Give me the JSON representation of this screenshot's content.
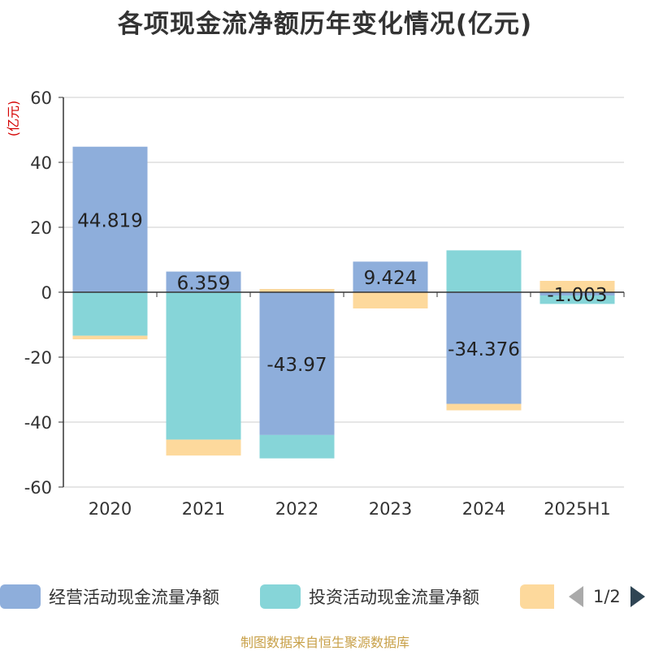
{
  "title": "各项现金流净额历年变化情况(亿元)",
  "source_note": "制图数据来自恒生聚源数据库",
  "pager": {
    "text": "1/2"
  },
  "chart_data": {
    "type": "bar",
    "stacked": true,
    "title": "各项现金流净额历年变化情况(亿元)",
    "ylabel": "(亿元)",
    "xlabel": "",
    "ylim": [
      -60,
      60
    ],
    "yticks": [
      60,
      40,
      20,
      0,
      -20,
      -40,
      -60
    ],
    "ytick_labels": [
      "60",
      "40",
      "20",
      "0",
      "-20",
      "-40",
      "-60"
    ],
    "grid": true,
    "legend_position": "bottom",
    "categories": [
      "2020",
      "2021",
      "2022",
      "2023",
      "2024",
      "2025H1"
    ],
    "series": [
      {
        "name": "经营活动现金流量净额",
        "color": "#8eaedb",
        "values": [
          44.819,
          6.359,
          -43.97,
          9.424,
          -34.376,
          -1.003
        ],
        "data_labels": [
          "44.819",
          "6.359",
          "-43.97",
          "9.424",
          "-34.376",
          "-1.003"
        ]
      },
      {
        "name": "投资活动现金流量净额",
        "color": "#86d5d8",
        "values": [
          -13.4,
          -45.4,
          -7.2,
          0.0,
          12.9,
          -2.6
        ],
        "data_labels": []
      },
      {
        "name": "",
        "color": "#fdd99c",
        "values": [
          -1.1,
          -4.9,
          1.0,
          -5.0,
          -2.0,
          3.5
        ],
        "data_labels": []
      }
    ]
  }
}
